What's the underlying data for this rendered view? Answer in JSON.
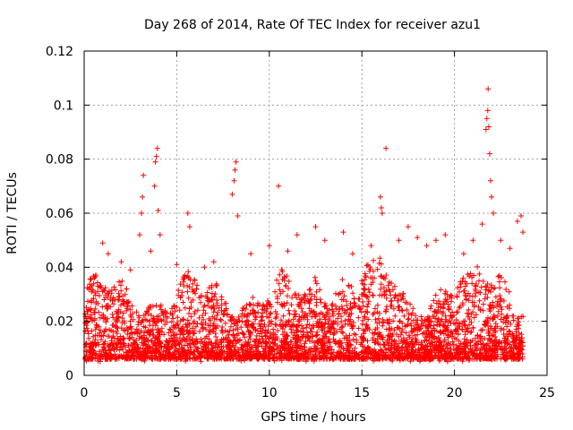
{
  "chart_data": {
    "type": "scatter",
    "title": "Day 268 of 2014, Rate Of TEC Index for receiver azu1",
    "xlabel": "GPS time / hours",
    "ylabel": "ROTI / TECUs",
    "xlim": [
      0,
      25
    ],
    "ylim": [
      0,
      0.12
    ],
    "xticks": [
      0,
      5,
      10,
      15,
      20,
      25
    ],
    "xtick_labels": [
      "0",
      "5",
      "10",
      "15",
      "20",
      "25"
    ],
    "yticks": [
      0,
      0.02,
      0.04,
      0.06,
      0.08,
      0.1,
      0.12
    ],
    "ytick_labels": [
      "0",
      "0.02",
      "0.04",
      "0.06",
      "0.08",
      "0.1",
      "0.12"
    ],
    "grid": true,
    "marker": "+",
    "series": [
      {
        "name": "ROTI",
        "color": "#ff0000",
        "points": [
          [
            0.3,
            0.021
          ],
          [
            0.8,
            0.018
          ],
          [
            1.0,
            0.049
          ],
          [
            1.3,
            0.045
          ],
          [
            2.0,
            0.042
          ],
          [
            2.5,
            0.039
          ],
          [
            3.0,
            0.052
          ],
          [
            3.1,
            0.06
          ],
          [
            3.15,
            0.066
          ],
          [
            3.2,
            0.074
          ],
          [
            3.6,
            0.046
          ],
          [
            3.8,
            0.07
          ],
          [
            3.85,
            0.079
          ],
          [
            3.9,
            0.081
          ],
          [
            3.95,
            0.084
          ],
          [
            4.0,
            0.061
          ],
          [
            4.1,
            0.052
          ],
          [
            5.0,
            0.041
          ],
          [
            5.6,
            0.06
          ],
          [
            5.7,
            0.055
          ],
          [
            6.5,
            0.04
          ],
          [
            7.0,
            0.042
          ],
          [
            8.0,
            0.067
          ],
          [
            8.1,
            0.072
          ],
          [
            8.15,
            0.076
          ],
          [
            8.2,
            0.079
          ],
          [
            8.3,
            0.059
          ],
          [
            9.0,
            0.045
          ],
          [
            10.0,
            0.048
          ],
          [
            10.5,
            0.07
          ],
          [
            11.0,
            0.046
          ],
          [
            11.5,
            0.052
          ],
          [
            12.5,
            0.055
          ],
          [
            13.0,
            0.05
          ],
          [
            14.0,
            0.053
          ],
          [
            14.5,
            0.045
          ],
          [
            15.5,
            0.048
          ],
          [
            16.0,
            0.066
          ],
          [
            16.05,
            0.062
          ],
          [
            16.1,
            0.06
          ],
          [
            16.3,
            0.084
          ],
          [
            17.0,
            0.05
          ],
          [
            17.5,
            0.055
          ],
          [
            18.0,
            0.051
          ],
          [
            18.5,
            0.048
          ],
          [
            19.0,
            0.05
          ],
          [
            19.5,
            0.052
          ],
          [
            20.5,
            0.045
          ],
          [
            21.0,
            0.05
          ],
          [
            21.5,
            0.056
          ],
          [
            21.7,
            0.091
          ],
          [
            21.75,
            0.095
          ],
          [
            21.8,
            0.098
          ],
          [
            21.82,
            0.106
          ],
          [
            21.85,
            0.092
          ],
          [
            21.9,
            0.082
          ],
          [
            21.95,
            0.072
          ],
          [
            22.0,
            0.066
          ],
          [
            22.1,
            0.06
          ],
          [
            22.5,
            0.05
          ],
          [
            23.0,
            0.047
          ],
          [
            23.4,
            0.057
          ],
          [
            23.6,
            0.059
          ],
          [
            23.7,
            0.053
          ]
        ],
        "bulk_note": "dense cloud of points between about 0.005 and 0.04 across 0–23.7 h"
      }
    ]
  }
}
